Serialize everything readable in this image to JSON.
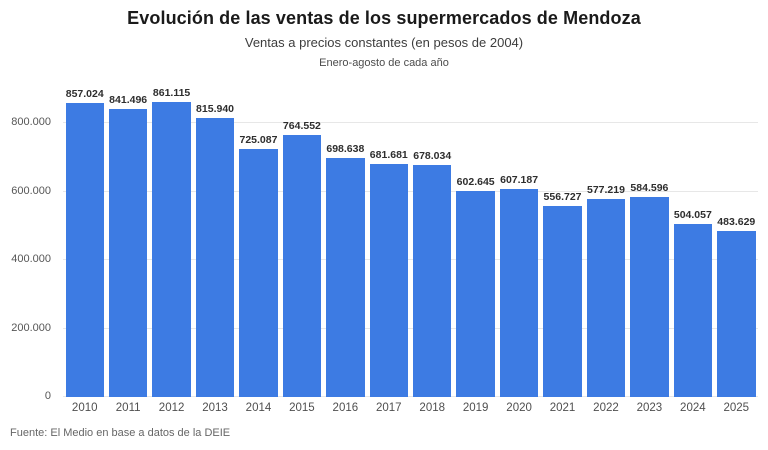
{
  "header": {
    "title": "Evolución de las ventas de los supermercados de Mendoza",
    "subtitle": "Ventas a precios constantes (en pesos de 2004)",
    "period_note": "Enero-agosto de cada año"
  },
  "footer": {
    "source": "Fuente: El Medio en base a datos de la DEIE"
  },
  "colors": {
    "bar": "#3d7be3",
    "grid": "#e7e7e7",
    "axis_text": "#565656",
    "value_label": "#2e2e2e",
    "background": "#ffffff"
  },
  "chart_data": {
    "type": "bar",
    "title": "Evolución de las ventas de los supermercados de Mendoza",
    "subtitle": "Ventas a precios constantes (en pesos de 2004)",
    "note": "Enero-agosto de cada año",
    "xlabel": "",
    "ylabel": "",
    "categories": [
      "2010",
      "2011",
      "2012",
      "2013",
      "2014",
      "2015",
      "2016",
      "2017",
      "2018",
      "2019",
      "2020",
      "2021",
      "2022",
      "2023",
      "2024",
      "2025"
    ],
    "values": [
      857024,
      841496,
      861115,
      815940,
      725087,
      764552,
      698638,
      681681,
      678034,
      602645,
      607187,
      556727,
      577219,
      584596,
      504057,
      483629
    ],
    "value_labels": [
      "857.024",
      "841.496",
      "861.115",
      "815.940",
      "725.087",
      "764.552",
      "698.638",
      "681.681",
      "678.034",
      "602.645",
      "607.187",
      "556.727",
      "577.219",
      "584.596",
      "504.057",
      "483.629"
    ],
    "ylim": [
      0,
      880000
    ],
    "yticks": [
      0,
      200000,
      400000,
      600000,
      800000
    ],
    "ytick_labels": [
      "0",
      "200.000",
      "400.000",
      "600.000",
      "800.000"
    ],
    "grid": "horizontal",
    "legend": "none",
    "source": "Fuente: El Medio en base a datos de la DEIE"
  }
}
